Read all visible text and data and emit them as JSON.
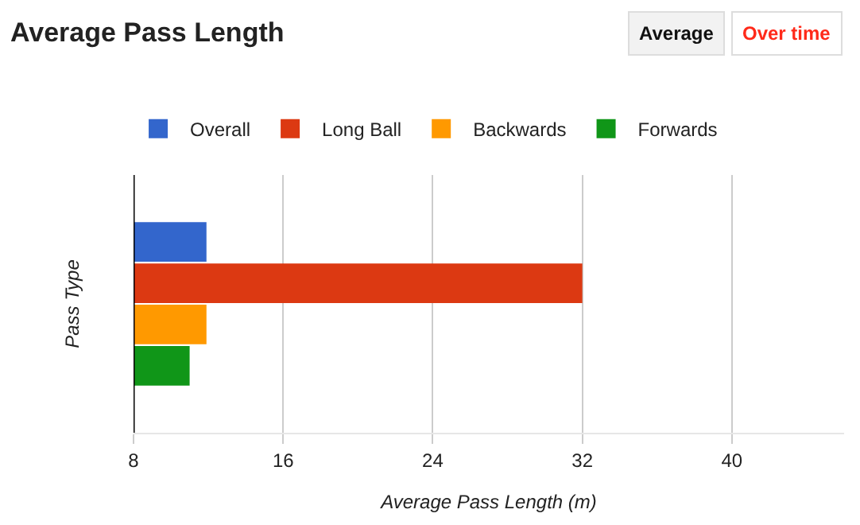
{
  "chart_data": {
    "type": "bar",
    "orientation": "horizontal",
    "title": "Average Pass Length",
    "xlabel": "Average Pass Length (m)",
    "ylabel": "Pass Type",
    "categories": [
      null
    ],
    "series": [
      {
        "name": "Overall",
        "color": "#3366cc",
        "values": [
          11.9
        ]
      },
      {
        "name": "Long Ball",
        "color": "#dc3912",
        "values": [
          32.0
        ]
      },
      {
        "name": "Backwards",
        "color": "#ff9900",
        "values": [
          11.9
        ]
      },
      {
        "name": "Forwards",
        "color": "#109618",
        "values": [
          11.0
        ]
      }
    ],
    "xlim": [
      8,
      46
    ],
    "xticks": [
      8,
      16,
      24,
      32,
      40
    ],
    "grid": "x",
    "legend": "top left",
    "annotations": [
      "Average",
      "Over time"
    ]
  }
}
